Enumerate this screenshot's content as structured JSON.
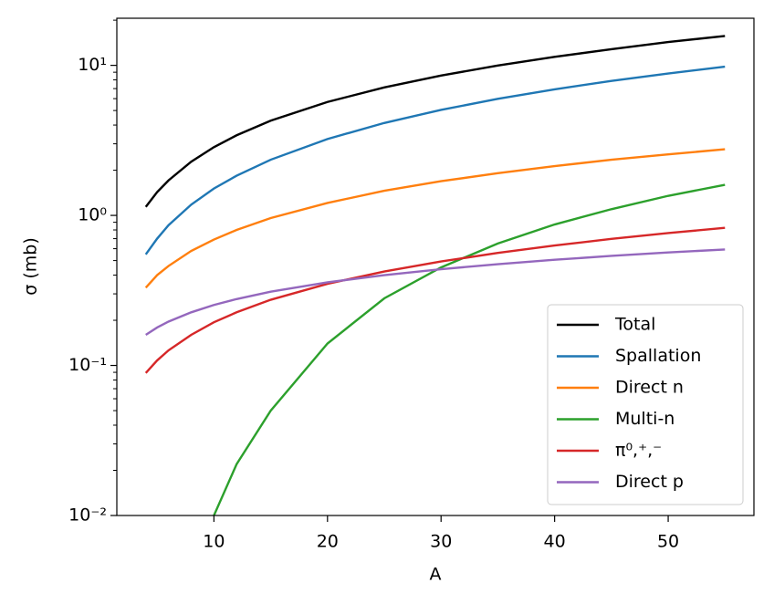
{
  "chart_data": {
    "type": "line",
    "xlabel": "A",
    "ylabel": "σ (mb)",
    "x": [
      4,
      5,
      6,
      8,
      10,
      12,
      15,
      20,
      25,
      30,
      35,
      40,
      45,
      50,
      55
    ],
    "series": [
      {
        "name": "Total",
        "color": "#000000",
        "values": [
          1.14,
          1.43,
          1.71,
          2.28,
          2.85,
          3.42,
          4.28,
          5.7,
          7.13,
          8.55,
          9.98,
          11.4,
          12.8,
          14.3,
          15.7
        ]
      },
      {
        "name": "Spallation",
        "color": "#1f77b4",
        "values": [
          0.55,
          0.7,
          0.86,
          1.18,
          1.51,
          1.84,
          2.35,
          3.23,
          4.13,
          5.05,
          5.98,
          6.92,
          7.88,
          8.83,
          9.8
        ]
      },
      {
        "name": "Direct n",
        "color": "#ff7f0e",
        "values": [
          0.33,
          0.4,
          0.46,
          0.58,
          0.69,
          0.8,
          0.96,
          1.21,
          1.46,
          1.69,
          1.91,
          2.13,
          2.35,
          2.55,
          2.76
        ]
      },
      {
        "name": "Multi-n",
        "color": "#2ca02c",
        "values": [
          null,
          null,
          null,
          null,
          0.01,
          0.022,
          0.05,
          0.14,
          0.28,
          0.45,
          0.65,
          0.87,
          1.1,
          1.35,
          1.6
        ]
      },
      {
        "name": "π⁰,⁺,⁻",
        "color": "#d62728",
        "values": [
          0.089,
          0.108,
          0.126,
          0.16,
          0.194,
          0.226,
          0.274,
          0.35,
          0.423,
          0.493,
          0.562,
          0.63,
          0.697,
          0.762,
          0.826
        ]
      },
      {
        "name": "Direct p",
        "color": "#9467bd",
        "values": [
          0.16,
          0.179,
          0.196,
          0.226,
          0.253,
          0.277,
          0.31,
          0.358,
          0.4,
          0.438,
          0.473,
          0.506,
          0.537,
          0.566,
          0.593
        ]
      }
    ],
    "xlim": [
      1.45,
      57.55
    ],
    "xticks": [
      10,
      20,
      30,
      40,
      50
    ],
    "ylim": [
      0.01,
      20.6
    ],
    "yscale": "log",
    "yticks": [
      {
        "value": 0.01,
        "label": "10⁻²"
      },
      {
        "value": 0.1,
        "label": "10⁻¹"
      },
      {
        "value": 1,
        "label": "10⁰"
      },
      {
        "value": 10,
        "label": "10¹"
      }
    ],
    "legend": "lower right"
  }
}
